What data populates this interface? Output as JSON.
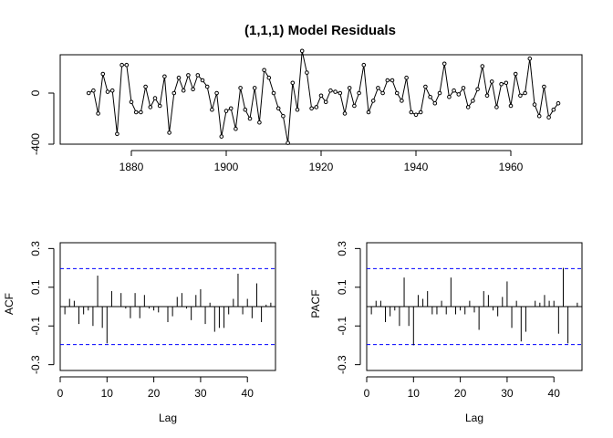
{
  "chart_data": [
    {
      "type": "line",
      "title": "(1,1,1) Model Residuals",
      "xlabel": "",
      "ylabel": "",
      "xlim": [
        1865,
        1975
      ],
      "ylim": [
        -400,
        300
      ],
      "x_ticks": [
        1880,
        1900,
        1920,
        1940,
        1960
      ],
      "y_ticks": [
        -400,
        0
      ],
      "grid": false,
      "x_start": 1871,
      "series": [
        {
          "markers": "open-circle",
          "values": [
            0,
            20,
            -160,
            150,
            10,
            20,
            -320,
            220,
            220,
            -70,
            -150,
            -150,
            50,
            -110,
            -40,
            -100,
            130,
            -310,
            0,
            120,
            20,
            140,
            30,
            140,
            100,
            50,
            -130,
            0,
            -340,
            -140,
            -120,
            -280,
            40,
            -130,
            -200,
            40,
            -230,
            180,
            120,
            0,
            -120,
            -180,
            -390,
            80,
            -130,
            330,
            160,
            -120,
            -110,
            -20,
            -70,
            20,
            10,
            0,
            -160,
            40,
            -100,
            0,
            220,
            -150,
            -60,
            40,
            0,
            100,
            100,
            0,
            -60,
            120,
            -150,
            -170,
            -150,
            50,
            -30,
            -80,
            0,
            230,
            -30,
            20,
            -10,
            40,
            -110,
            -60,
            30,
            210,
            -20,
            90,
            -110,
            70,
            80,
            -100,
            150,
            -20,
            0,
            270,
            -90,
            -180,
            50,
            -190,
            -130,
            -80
          ]
        }
      ]
    },
    {
      "type": "bar",
      "xlabel": "Lag",
      "ylabel": "ACF",
      "xlim": [
        0,
        46
      ],
      "ylim": [
        -0.33,
        0.33
      ],
      "x_ticks": [
        0,
        10,
        20,
        30,
        40
      ],
      "y_ticks": [
        -0.3,
        -0.1,
        0.1,
        0.3
      ],
      "ci": 0.196,
      "lags": [
        1,
        2,
        3,
        4,
        5,
        6,
        7,
        8,
        9,
        10,
        11,
        12,
        13,
        14,
        15,
        16,
        17,
        18,
        19,
        20,
        21,
        22,
        23,
        24,
        25,
        26,
        27,
        28,
        29,
        30,
        31,
        32,
        33,
        34,
        35,
        36,
        37,
        38,
        39,
        40,
        41,
        42,
        43,
        44,
        45
      ],
      "values": [
        -0.04,
        0.04,
        0.03,
        -0.09,
        -0.04,
        -0.02,
        -0.1,
        0.16,
        -0.11,
        -0.19,
        0.08,
        0.0,
        0.07,
        -0.01,
        -0.06,
        0.07,
        -0.06,
        0.06,
        -0.01,
        -0.02,
        -0.03,
        0.0,
        -0.08,
        -0.05,
        0.05,
        0.07,
        -0.01,
        -0.07,
        0.06,
        0.09,
        -0.09,
        0.02,
        -0.13,
        -0.11,
        -0.11,
        -0.04,
        0.04,
        0.17,
        -0.04,
        0.04,
        -0.06,
        0.12,
        -0.08,
        0.01,
        0.02
      ]
    },
    {
      "type": "bar",
      "xlabel": "Lag",
      "ylabel": "PACF",
      "xlim": [
        0,
        46
      ],
      "ylim": [
        -0.33,
        0.33
      ],
      "x_ticks": [
        0,
        10,
        20,
        30,
        40
      ],
      "y_ticks": [
        -0.3,
        -0.1,
        0.1,
        0.3
      ],
      "ci": 0.196,
      "lags": [
        1,
        2,
        3,
        4,
        5,
        6,
        7,
        8,
        9,
        10,
        11,
        12,
        13,
        14,
        15,
        16,
        17,
        18,
        19,
        20,
        21,
        22,
        23,
        24,
        25,
        26,
        27,
        28,
        29,
        30,
        31,
        32,
        33,
        34,
        35,
        36,
        37,
        38,
        39,
        40,
        41,
        42,
        43,
        44,
        45
      ],
      "values": [
        -0.04,
        0.03,
        0.03,
        -0.08,
        -0.05,
        -0.02,
        -0.1,
        0.15,
        -0.1,
        -0.2,
        0.06,
        0.04,
        0.08,
        -0.04,
        -0.04,
        0.03,
        -0.04,
        0.15,
        -0.04,
        -0.02,
        -0.04,
        0.03,
        -0.03,
        -0.12,
        0.08,
        0.06,
        -0.02,
        -0.05,
        0.05,
        0.13,
        -0.11,
        0.03,
        -0.18,
        -0.13,
        0.0,
        0.03,
        0.02,
        0.06,
        0.03,
        0.03,
        -0.14,
        0.2,
        -0.19,
        0.0,
        0.02
      ]
    }
  ],
  "colors": {
    "axis": "#000000",
    "line": "#000000",
    "ci": "#0000ff"
  }
}
